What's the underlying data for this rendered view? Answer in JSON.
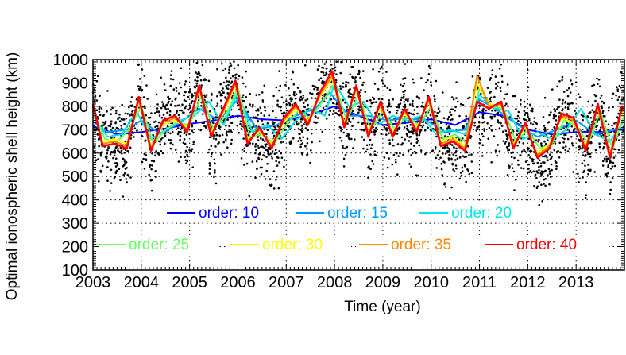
{
  "chart_data": {
    "type": "line",
    "title": "",
    "xlabel": "Time (year)",
    "ylabel": "Optimal ionospheric shell height (km)",
    "xlim": [
      2003,
      2014
    ],
    "ylim": [
      100,
      1000
    ],
    "x_ticks": [
      "2003",
      "2004",
      "2005",
      "2006",
      "2007",
      "2008",
      "2009",
      "2010",
      "2011",
      "2012",
      "2013"
    ],
    "y_ticks": [
      "100",
      "200",
      "300",
      "400",
      "500",
      "600",
      "700",
      "800",
      "900",
      "1000"
    ],
    "grid": "dotted",
    "legend_placement": "bottom",
    "series": [
      {
        "name": "order: 10",
        "color": "#0000ff",
        "x": [
          2003.0,
          2003.5,
          2004.0,
          2004.5,
          2005.0,
          2005.5,
          2006.0,
          2006.5,
          2007.0,
          2007.5,
          2008.0,
          2008.5,
          2009.0,
          2009.5,
          2010.0,
          2010.5,
          2011.0,
          2011.5,
          2012.0,
          2012.5,
          2013.0,
          2013.5,
          2014.0
        ],
        "values": [
          715,
          680,
          690,
          705,
          725,
          740,
          760,
          745,
          740,
          765,
          800,
          760,
          720,
          730,
          745,
          720,
          775,
          760,
          700,
          680,
          690,
          690,
          700
        ]
      },
      {
        "name": "order: 15",
        "color": "#0099ff",
        "x": [
          2003.0,
          2003.3,
          2003.7,
          2004.0,
          2004.4,
          2004.8,
          2005.2,
          2005.6,
          2006.0,
          2006.4,
          2006.8,
          2007.2,
          2007.6,
          2007.9,
          2008.3,
          2008.7,
          2009.1,
          2009.5,
          2009.9,
          2010.3,
          2010.7,
          2011.0,
          2011.4,
          2011.8,
          2012.2,
          2012.6,
          2013.0,
          2013.4,
          2013.8,
          2014.0
        ],
        "values": [
          735,
          690,
          700,
          740,
          680,
          730,
          790,
          740,
          830,
          700,
          720,
          760,
          790,
          860,
          760,
          760,
          740,
          750,
          740,
          690,
          700,
          830,
          780,
          720,
          670,
          700,
          740,
          680,
          700,
          710
        ]
      },
      {
        "name": "order: 20",
        "color": "#00e5e5",
        "x": [
          2003.0,
          2003.3,
          2003.6,
          2003.9,
          2004.2,
          2004.5,
          2004.8,
          2005.1,
          2005.4,
          2005.7,
          2006.0,
          2006.3,
          2006.6,
          2006.9,
          2007.2,
          2007.5,
          2007.8,
          2008.0,
          2008.3,
          2008.6,
          2008.9,
          2009.2,
          2009.5,
          2009.8,
          2010.1,
          2010.4,
          2010.7,
          2011.0,
          2011.3,
          2011.6,
          2011.9,
          2012.2,
          2012.5,
          2012.8,
          2013.1,
          2013.4,
          2013.7,
          2014.0
        ],
        "values": [
          760,
          670,
          680,
          780,
          660,
          700,
          740,
          760,
          820,
          720,
          860,
          690,
          720,
          660,
          740,
          790,
          760,
          900,
          800,
          820,
          720,
          760,
          740,
          760,
          680,
          700,
          680,
          850,
          790,
          780,
          660,
          690,
          660,
          700,
          790,
          680,
          650,
          740
        ]
      },
      {
        "name": "order: 25",
        "color": "#66ff66",
        "x": [
          2003.0,
          2003.25,
          2003.5,
          2003.75,
          2004.0,
          2004.25,
          2004.5,
          2004.75,
          2005.0,
          2005.25,
          2005.5,
          2005.75,
          2006.0,
          2006.25,
          2006.5,
          2006.75,
          2007.0,
          2007.25,
          2007.5,
          2007.75,
          2008.0,
          2008.25,
          2008.5,
          2008.75,
          2009.0,
          2009.25,
          2009.5,
          2009.75,
          2010.0,
          2010.25,
          2010.5,
          2010.75,
          2011.0,
          2011.25,
          2011.5,
          2011.75,
          2012.0,
          2012.25,
          2012.5,
          2012.75,
          2013.0,
          2013.25,
          2013.5,
          2013.75,
          2014.0
        ],
        "values": [
          780,
          660,
          650,
          700,
          800,
          640,
          700,
          730,
          720,
          850,
          700,
          760,
          880,
          670,
          680,
          640,
          720,
          780,
          750,
          820,
          900,
          740,
          850,
          700,
          780,
          700,
          760,
          720,
          800,
          660,
          680,
          640,
          880,
          800,
          790,
          650,
          700,
          620,
          640,
          740,
          720,
          640,
          780,
          620,
          760
        ]
      },
      {
        "name": "order: 30",
        "color": "#ffff00",
        "x": [
          2003.0,
          2003.2,
          2003.45,
          2003.7,
          2003.95,
          2004.2,
          2004.45,
          2004.7,
          2004.95,
          2005.2,
          2005.45,
          2005.7,
          2005.95,
          2006.2,
          2006.45,
          2006.7,
          2006.95,
          2007.2,
          2007.45,
          2007.7,
          2007.95,
          2008.2,
          2008.45,
          2008.7,
          2008.95,
          2009.2,
          2009.45,
          2009.7,
          2009.95,
          2010.2,
          2010.45,
          2010.7,
          2010.95,
          2011.2,
          2011.45,
          2011.7,
          2011.95,
          2012.2,
          2012.45,
          2012.7,
          2012.95,
          2013.2,
          2013.45,
          2013.7,
          2013.95,
          2014.0
        ],
        "values": [
          790,
          650,
          660,
          640,
          820,
          630,
          720,
          740,
          710,
          870,
          690,
          770,
          890,
          660,
          690,
          640,
          730,
          790,
          740,
          840,
          920,
          730,
          870,
          690,
          800,
          690,
          770,
          710,
          820,
          650,
          670,
          630,
          900,
          810,
          800,
          640,
          710,
          600,
          640,
          750,
          730,
          630,
          790,
          600,
          780,
          770
        ]
      },
      {
        "name": "order: 35",
        "color": "#ff8800",
        "x": [
          2003.0,
          2003.2,
          2003.45,
          2003.7,
          2003.95,
          2004.2,
          2004.45,
          2004.7,
          2004.95,
          2005.2,
          2005.45,
          2005.7,
          2005.95,
          2006.2,
          2006.45,
          2006.7,
          2006.95,
          2007.2,
          2007.45,
          2007.7,
          2007.95,
          2008.2,
          2008.45,
          2008.7,
          2008.95,
          2009.2,
          2009.45,
          2009.7,
          2009.95,
          2010.2,
          2010.45,
          2010.7,
          2010.95,
          2011.2,
          2011.45,
          2011.7,
          2011.95,
          2012.2,
          2012.45,
          2012.7,
          2012.95,
          2013.2,
          2013.45,
          2013.7,
          2013.95,
          2014.0
        ],
        "values": [
          800,
          640,
          650,
          630,
          830,
          620,
          730,
          750,
          700,
          880,
          680,
          780,
          900,
          650,
          700,
          630,
          740,
          800,
          730,
          850,
          930,
          720,
          880,
          680,
          810,
          680,
          780,
          700,
          830,
          640,
          660,
          620,
          930,
          800,
          810,
          630,
          720,
          590,
          630,
          760,
          740,
          620,
          800,
          590,
          790,
          780
        ]
      },
      {
        "name": "order: 40",
        "color": "#ff0000",
        "x": [
          2003.0,
          2003.2,
          2003.45,
          2003.7,
          2003.95,
          2004.2,
          2004.45,
          2004.7,
          2004.95,
          2005.2,
          2005.45,
          2005.7,
          2005.95,
          2006.2,
          2006.45,
          2006.7,
          2006.95,
          2007.2,
          2007.45,
          2007.7,
          2007.95,
          2008.2,
          2008.45,
          2008.7,
          2008.95,
          2009.2,
          2009.45,
          2009.7,
          2009.95,
          2010.2,
          2010.45,
          2010.7,
          2010.95,
          2011.2,
          2011.45,
          2011.7,
          2011.95,
          2012.2,
          2012.45,
          2012.7,
          2012.95,
          2013.2,
          2013.45,
          2013.7,
          2013.95,
          2014.0
        ],
        "values": [
          810,
          630,
          640,
          620,
          840,
          610,
          740,
          760,
          690,
          890,
          670,
          790,
          910,
          640,
          710,
          620,
          750,
          810,
          720,
          860,
          950,
          710,
          890,
          670,
          820,
          670,
          790,
          690,
          840,
          630,
          650,
          610,
          820,
          790,
          820,
          620,
          730,
          580,
          620,
          770,
          750,
          610,
          810,
          580,
          800,
          790
        ]
      }
    ]
  }
}
